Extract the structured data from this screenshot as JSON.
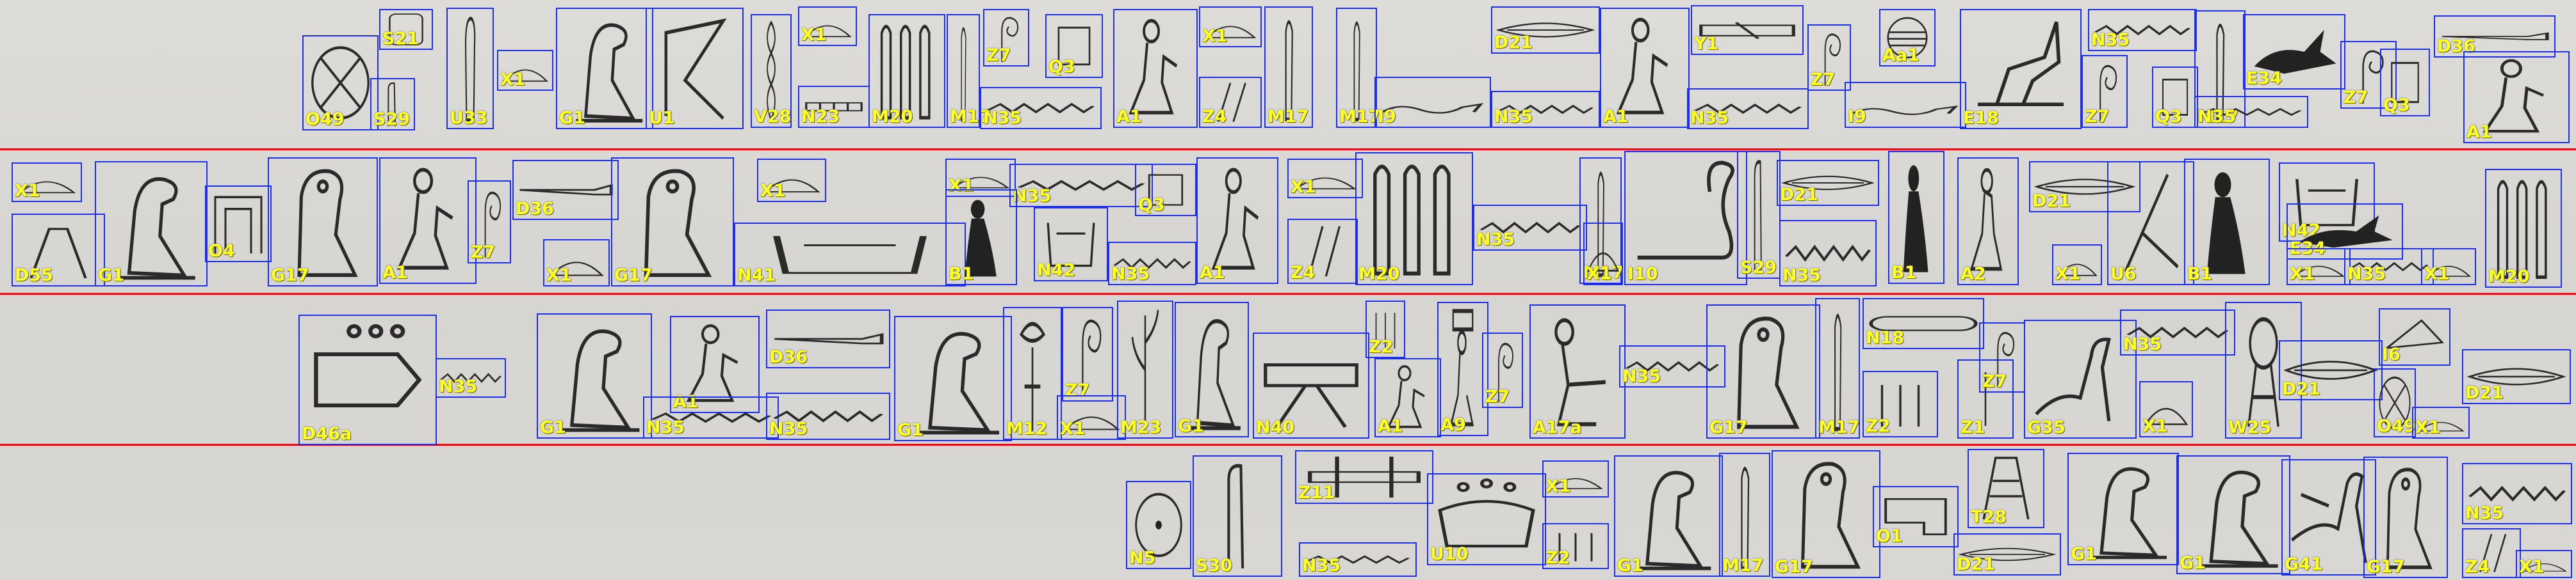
{
  "colors": {
    "box": "#1d2fe8",
    "label": "#ffff1e",
    "separator": "#e0101a",
    "ink": "#2a2a2a"
  },
  "annotations": [
    {
      "label": "S21",
      "row": 1,
      "icon": "cartouche-icon"
    },
    {
      "label": "O49",
      "row": 1,
      "icon": "city-sign-icon"
    },
    {
      "label": "S29",
      "row": 1,
      "icon": "folded-cloth-icon"
    },
    {
      "label": "U33",
      "row": 1,
      "icon": "pestle-icon"
    },
    {
      "label": "X1",
      "row": 1,
      "icon": "loaf-icon"
    },
    {
      "label": "G1",
      "row": 1,
      "icon": "vulture-icon"
    },
    {
      "label": "U1",
      "row": 1,
      "icon": "sickle-icon"
    },
    {
      "label": "V28",
      "row": 1,
      "icon": "twisted-flax-icon"
    },
    {
      "label": "X1",
      "row": 1,
      "icon": "loaf-icon"
    },
    {
      "label": "N23",
      "row": 1,
      "icon": "canal-icon"
    },
    {
      "label": "M20",
      "row": 1,
      "icon": "reeds-icon"
    },
    {
      "label": "M17",
      "row": 1,
      "icon": "reed-leaf-icon"
    },
    {
      "label": "Z7",
      "row": 1,
      "icon": "coil-icon"
    },
    {
      "label": "N35",
      "row": 1,
      "icon": "water-ripple-icon"
    },
    {
      "label": "Q3",
      "row": 1,
      "icon": "stool-icon"
    },
    {
      "label": "A1",
      "row": 1,
      "icon": "seated-man-icon"
    },
    {
      "label": "X1",
      "row": 1,
      "icon": "loaf-icon"
    },
    {
      "label": "Z4",
      "row": 1,
      "icon": "dual-strokes-icon"
    },
    {
      "label": "M17",
      "row": 1,
      "icon": "reed-leaf-icon"
    },
    {
      "label": "M17",
      "row": 1,
      "icon": "reed-leaf-icon"
    },
    {
      "label": "I9",
      "row": 1,
      "icon": "horned-viper-icon"
    },
    {
      "label": "D21",
      "row": 1,
      "icon": "mouth-icon"
    },
    {
      "label": "N35",
      "row": 1,
      "icon": "water-ripple-icon"
    },
    {
      "label": "A1",
      "row": 1,
      "icon": "seated-man-icon"
    },
    {
      "label": "Y1",
      "row": 1,
      "icon": "papyrus-roll-icon"
    },
    {
      "label": "N35",
      "row": 1,
      "icon": "water-ripple-icon"
    },
    {
      "label": "Z7",
      "row": 1,
      "icon": "coil-icon"
    },
    {
      "label": "I9",
      "row": 1,
      "icon": "horned-viper-icon"
    },
    {
      "label": "Aa1",
      "row": 1,
      "icon": "placenta-icon"
    },
    {
      "label": "E18",
      "row": 1,
      "icon": "jackal-standard-icon"
    },
    {
      "label": "N35",
      "row": 1,
      "icon": "water-ripple-icon"
    },
    {
      "label": "Z7",
      "row": 1,
      "icon": "coil-icon"
    },
    {
      "label": "Q3",
      "row": 1,
      "icon": "stool-icon"
    },
    {
      "label": "M17",
      "row": 1,
      "icon": "reed-leaf-icon"
    },
    {
      "label": "E34",
      "row": 1,
      "icon": "hare-icon"
    },
    {
      "label": "N35",
      "row": 1,
      "icon": "water-ripple-icon"
    },
    {
      "label": "Z7",
      "row": 1,
      "icon": "coil-icon"
    },
    {
      "label": "Q3",
      "row": 1,
      "icon": "stool-icon"
    },
    {
      "label": "D36",
      "row": 1,
      "icon": "forearm-icon"
    },
    {
      "label": "A1",
      "row": 1,
      "icon": "seated-man-icon"
    },
    {
      "label": "X1",
      "row": 2,
      "icon": "loaf-icon"
    },
    {
      "label": "D55",
      "row": 2,
      "icon": "legs-icon"
    },
    {
      "label": "G1",
      "row": 2,
      "icon": "vulture-icon"
    },
    {
      "label": "O4",
      "row": 2,
      "icon": "shelter-icon"
    },
    {
      "label": "G17",
      "row": 2,
      "icon": "owl-icon"
    },
    {
      "label": "A1",
      "row": 2,
      "icon": "seated-man-icon"
    },
    {
      "label": "Z7",
      "row": 2,
      "icon": "coil-icon"
    },
    {
      "label": "D36",
      "row": 2,
      "icon": "forearm-icon"
    },
    {
      "label": "X1",
      "row": 2,
      "icon": "loaf-icon"
    },
    {
      "label": "G17",
      "row": 2,
      "icon": "owl-icon"
    },
    {
      "label": "X1",
      "row": 2,
      "icon": "loaf-icon"
    },
    {
      "label": "N41",
      "row": 2,
      "icon": "well-icon"
    },
    {
      "label": "X1",
      "row": 2,
      "icon": "loaf-icon"
    },
    {
      "label": "N35",
      "row": 2,
      "icon": "water-ripple-icon"
    },
    {
      "label": "B1",
      "row": 2,
      "icon": "seated-woman-icon"
    },
    {
      "label": "Q3",
      "row": 2,
      "icon": "stool-icon"
    },
    {
      "label": "N42",
      "row": 2,
      "icon": "well-icon"
    },
    {
      "label": "N35",
      "row": 2,
      "icon": "water-ripple-icon"
    },
    {
      "label": "A1",
      "row": 2,
      "icon": "seated-man-icon"
    },
    {
      "label": "X1",
      "row": 2,
      "icon": "loaf-icon"
    },
    {
      "label": "Z4",
      "row": 2,
      "icon": "dual-strokes-icon"
    },
    {
      "label": "M20",
      "row": 2,
      "icon": "reeds-icon"
    },
    {
      "label": "N35",
      "row": 2,
      "icon": "water-ripple-icon"
    },
    {
      "label": "M17",
      "row": 2,
      "icon": "reed-leaf-icon"
    },
    {
      "label": "X1",
      "row": 2,
      "icon": "loaf-icon"
    },
    {
      "label": "I10",
      "row": 2,
      "icon": "cobra-icon"
    },
    {
      "label": "S29",
      "row": 2,
      "icon": "folded-cloth-icon"
    },
    {
      "label": "D21",
      "row": 2,
      "icon": "mouth-icon"
    },
    {
      "label": "N35",
      "row": 2,
      "icon": "water-ripple-icon"
    },
    {
      "label": "B1",
      "row": 2,
      "icon": "seated-woman-icon"
    },
    {
      "label": "A2",
      "row": 2,
      "icon": "man-hand-to-mouth-icon"
    },
    {
      "label": "D21",
      "row": 2,
      "icon": "mouth-icon"
    },
    {
      "label": "X1",
      "row": 2,
      "icon": "loaf-icon"
    },
    {
      "label": "U6",
      "row": 2,
      "icon": "hoe-icon"
    },
    {
      "label": "B1",
      "row": 2,
      "icon": "seated-woman-icon"
    },
    {
      "label": "N42",
      "row": 2,
      "icon": "well-icon"
    },
    {
      "label": "E34",
      "row": 2,
      "icon": "hare-icon"
    },
    {
      "label": "X1",
      "row": 2,
      "icon": "loaf-icon"
    },
    {
      "label": "N35",
      "row": 2,
      "icon": "water-ripple-icon"
    },
    {
      "label": "X1",
      "row": 2,
      "icon": "loaf-icon"
    },
    {
      "label": "M20",
      "row": 2,
      "icon": "reeds-icon"
    },
    {
      "label": "D46a",
      "row": 3,
      "icon": "hand-drops-icon"
    },
    {
      "label": "N35",
      "row": 3,
      "icon": "water-ripple-icon"
    },
    {
      "label": "G1",
      "row": 3,
      "icon": "vulture-icon"
    },
    {
      "label": "A1",
      "row": 3,
      "icon": "seated-man-icon"
    },
    {
      "label": "D36",
      "row": 3,
      "icon": "forearm-icon"
    },
    {
      "label": "N35",
      "row": 3,
      "icon": "water-ripple-icon"
    },
    {
      "label": "N35",
      "row": 3,
      "icon": "water-ripple-icon"
    },
    {
      "label": "G1",
      "row": 3,
      "icon": "vulture-icon"
    },
    {
      "label": "M12",
      "row": 3,
      "icon": "lotus-icon"
    },
    {
      "label": "Z7",
      "row": 3,
      "icon": "coil-icon"
    },
    {
      "label": "X1",
      "row": 3,
      "icon": "loaf-icon"
    },
    {
      "label": "M23",
      "row": 3,
      "icon": "sedge-icon"
    },
    {
      "label": "G1",
      "row": 3,
      "icon": "vulture-icon"
    },
    {
      "label": "N40",
      "row": 3,
      "icon": "pool-legs-icon"
    },
    {
      "label": "Z2",
      "row": 3,
      "icon": "plural-strokes-icon"
    },
    {
      "label": "A1",
      "row": 3,
      "icon": "seated-man-icon"
    },
    {
      "label": "A9",
      "row": 3,
      "icon": "man-carrying-icon"
    },
    {
      "label": "Z7",
      "row": 3,
      "icon": "coil-icon"
    },
    {
      "label": "A17a",
      "row": 3,
      "icon": "child-icon"
    },
    {
      "label": "N35",
      "row": 3,
      "icon": "water-ripple-icon"
    },
    {
      "label": "G17",
      "row": 3,
      "icon": "owl-icon"
    },
    {
      "label": "M17",
      "row": 3,
      "icon": "reed-leaf-icon"
    },
    {
      "label": "N18",
      "row": 3,
      "icon": "sandbank-icon"
    },
    {
      "label": "Z2",
      "row": 3,
      "icon": "plural-strokes-icon"
    },
    {
      "label": "Z1",
      "row": 3,
      "icon": "stroke-icon"
    },
    {
      "label": "Z7",
      "row": 3,
      "icon": "coil-icon"
    },
    {
      "label": "G35",
      "row": 3,
      "icon": "cormorant-icon"
    },
    {
      "label": "N35",
      "row": 3,
      "icon": "water-ripple-icon"
    },
    {
      "label": "X1",
      "row": 3,
      "icon": "loaf-icon"
    },
    {
      "label": "W25",
      "row": 3,
      "icon": "jar-icon"
    },
    {
      "label": "D21",
      "row": 3,
      "icon": "mouth-icon"
    },
    {
      "label": "I6",
      "row": 3,
      "icon": "crocodile-scales-icon"
    },
    {
      "label": "O49",
      "row": 3,
      "icon": "city-sign-icon"
    },
    {
      "label": "X1",
      "row": 3,
      "icon": "loaf-icon"
    },
    {
      "label": "D21",
      "row": 3,
      "icon": "mouth-icon"
    },
    {
      "label": "N5",
      "row": 4,
      "icon": "sun-icon"
    },
    {
      "label": "S30",
      "row": 4,
      "icon": "folded-cloth-icon"
    },
    {
      "label": "Z11",
      "row": 4,
      "icon": "crossed-planks-icon"
    },
    {
      "label": "N35",
      "row": 4,
      "icon": "water-ripple-icon"
    },
    {
      "label": "U10",
      "row": 4,
      "icon": "grain-measure-icon"
    },
    {
      "label": "X1",
      "row": 4,
      "icon": "loaf-icon"
    },
    {
      "label": "Z2",
      "row": 4,
      "icon": "plural-strokes-icon"
    },
    {
      "label": "G1",
      "row": 4,
      "icon": "vulture-icon"
    },
    {
      "label": "M17",
      "row": 4,
      "icon": "reed-leaf-icon"
    },
    {
      "label": "G17",
      "row": 4,
      "icon": "owl-icon"
    },
    {
      "label": "O1",
      "row": 4,
      "icon": "house-icon"
    },
    {
      "label": "D21",
      "row": 4,
      "icon": "mouth-icon"
    },
    {
      "label": "T28",
      "row": 4,
      "icon": "butcher-block-icon"
    },
    {
      "label": "G1",
      "row": 4,
      "icon": "vulture-icon"
    },
    {
      "label": "G1",
      "row": 4,
      "icon": "vulture-icon"
    },
    {
      "label": "G41",
      "row": 4,
      "icon": "pintail-icon"
    },
    {
      "label": "G17",
      "row": 4,
      "icon": "owl-icon"
    },
    {
      "label": "N35",
      "row": 4,
      "icon": "water-ripple-icon"
    },
    {
      "label": "Z4",
      "row": 4,
      "icon": "dual-strokes-icon"
    },
    {
      "label": "X1",
      "row": 4,
      "icon": "loaf-icon"
    }
  ]
}
